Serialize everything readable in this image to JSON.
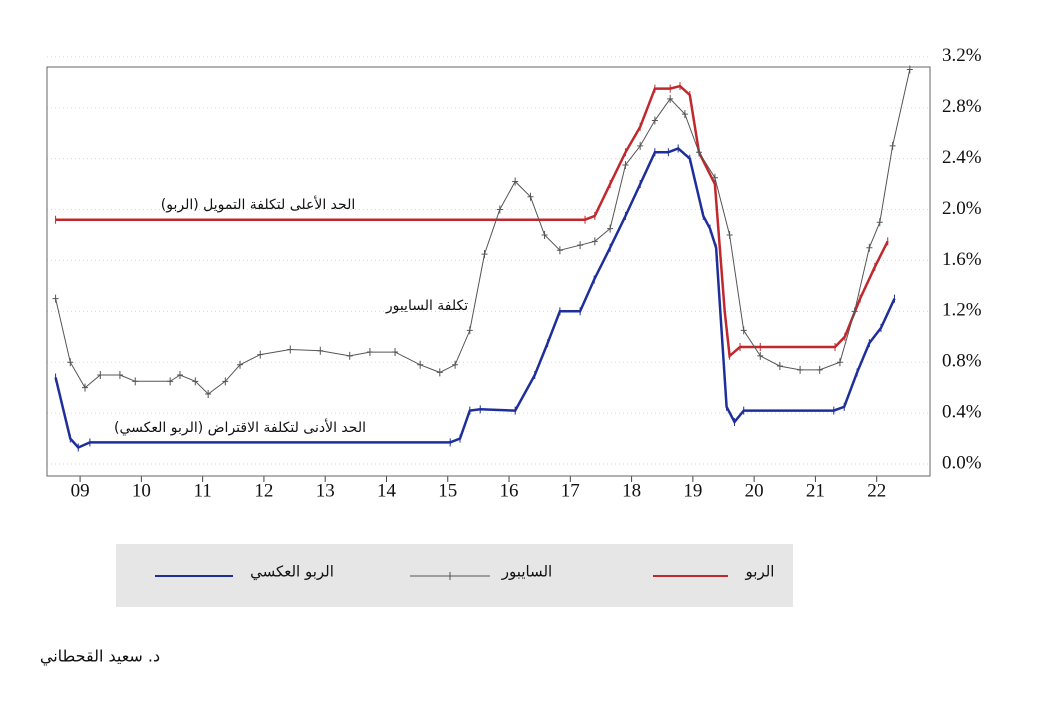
{
  "chart_data": {
    "type": "line",
    "xlim": [
      2008.46,
      2022.87
    ],
    "ylim": [
      -0.094,
      3.12
    ],
    "xticks": [
      {
        "value": 2009,
        "label": "09"
      },
      {
        "value": 2010,
        "label": "10"
      },
      {
        "value": 2011,
        "label": "11"
      },
      {
        "value": 2012,
        "label": "12"
      },
      {
        "value": 2013,
        "label": "13"
      },
      {
        "value": 2014,
        "label": "14"
      },
      {
        "value": 2015,
        "label": "15"
      },
      {
        "value": 2016,
        "label": "16"
      },
      {
        "value": 2017,
        "label": "17"
      },
      {
        "value": 2018,
        "label": "18"
      },
      {
        "value": 2019,
        "label": "19"
      },
      {
        "value": 2020,
        "label": "20"
      },
      {
        "value": 2021,
        "label": "21"
      },
      {
        "value": 2022,
        "label": "22"
      }
    ],
    "yticks": [
      {
        "value": 0,
        "label": "0.0%"
      },
      {
        "value": 0.4,
        "label": "0.4%"
      },
      {
        "value": 0.8,
        "label": "0.8%"
      },
      {
        "value": 1.2,
        "label": "1.2%"
      },
      {
        "value": 1.6,
        "label": "1.6%"
      },
      {
        "value": 2.0,
        "label": "2.0%"
      },
      {
        "value": 2.4,
        "label": "2.4%"
      },
      {
        "value": 2.8,
        "label": "2.8%"
      },
      {
        "value": 3.2,
        "label": "3.2%"
      }
    ],
    "grid": true,
    "series": [
      {
        "name": "الربو",
        "color": "#c0282d",
        "x": [
          2008.6,
          2017.24,
          2017.4,
          2017.65,
          2017.9,
          2018.14,
          2018.38,
          2018.63,
          2018.79,
          2018.95,
          2019.1,
          2019.36,
          2019.52,
          2019.6,
          2019.77,
          2020.1,
          2021.32,
          2021.48,
          2021.73,
          2021.97,
          2022.18
        ],
        "values": [
          1.92,
          1.92,
          1.95,
          2.2,
          2.45,
          2.65,
          2.95,
          2.95,
          2.97,
          2.9,
          2.45,
          2.2,
          1.2,
          0.85,
          0.92,
          0.92,
          0.92,
          1.0,
          1.3,
          1.55,
          1.75
        ]
      },
      {
        "name": "السايبور",
        "color": "#555555",
        "x": [
          2008.6,
          2008.84,
          2009.08,
          2009.33,
          2009.65,
          2009.9,
          2010.47,
          2010.63,
          2010.88,
          2011.09,
          2011.37,
          2011.61,
          2011.94,
          2012.43,
          2012.92,
          2013.4,
          2013.73,
          2014.14,
          2014.55,
          2014.87,
          2015.12,
          2015.36,
          2015.6,
          2015.85,
          2016.1,
          2016.35,
          2016.58,
          2016.83,
          2017.16,
          2017.4,
          2017.65,
          2017.9,
          2018.14,
          2018.38,
          2018.63,
          2018.87,
          2019.1,
          2019.36,
          2019.6,
          2019.83,
          2020.1,
          2020.42,
          2020.75,
          2021.07,
          2021.4,
          2021.64,
          2021.88,
          2022.05,
          2022.26,
          2022.54
        ],
        "values": [
          1.3,
          0.8,
          0.6,
          0.7,
          0.7,
          0.65,
          0.65,
          0.7,
          0.65,
          0.55,
          0.65,
          0.78,
          0.86,
          0.9,
          0.89,
          0.85,
          0.88,
          0.88,
          0.78,
          0.72,
          0.78,
          1.05,
          1.65,
          2.0,
          2.22,
          2.1,
          1.8,
          1.68,
          1.72,
          1.75,
          1.85,
          2.35,
          2.5,
          2.7,
          2.87,
          2.75,
          2.45,
          2.25,
          1.8,
          1.05,
          0.85,
          0.77,
          0.74,
          0.74,
          0.8,
          1.2,
          1.7,
          1.9,
          2.5,
          3.1
        ]
      },
      {
        "name": "الربو العكسي",
        "color": "#1f2f9a",
        "x": [
          2008.6,
          2008.84,
          2008.97,
          2009.16,
          2015.04,
          2015.2,
          2015.36,
          2015.53,
          2016.1,
          2016.42,
          2016.63,
          2016.83,
          2017.16,
          2017.39,
          2017.65,
          2017.9,
          2018.14,
          2018.38,
          2018.6,
          2018.76,
          2018.95,
          2019.17,
          2019.28,
          2019.38,
          2019.55,
          2019.68,
          2019.83,
          2021.3,
          2021.47,
          2021.68,
          2021.88,
          2022.07,
          2022.29
        ],
        "values": [
          0.68,
          0.2,
          0.13,
          0.17,
          0.17,
          0.2,
          0.42,
          0.43,
          0.42,
          0.7,
          0.95,
          1.2,
          1.2,
          1.45,
          1.7,
          1.95,
          2.2,
          2.45,
          2.45,
          2.48,
          2.4,
          1.95,
          1.85,
          1.7,
          0.45,
          0.33,
          0.42,
          0.42,
          0.45,
          0.72,
          0.95,
          1.07,
          1.3
        ]
      }
    ],
    "annotations": [
      "الحد الأعلى لتكلفة التمويل (الربو)",
      "تكلفة السايبور",
      "الحد الأدنى لتكلفة الاقتراض (الربو العكسي)"
    ],
    "author": "د. سعيد القحطاني"
  }
}
